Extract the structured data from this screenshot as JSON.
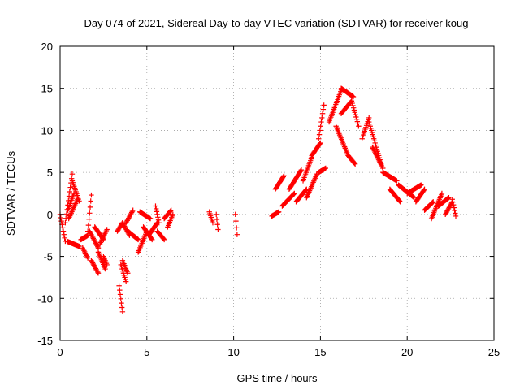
{
  "chart_data": {
    "type": "scatter",
    "title": "Day 074 of 2021, Sidereal Day-to-day VTEC variation (SDTVAR) for receiver koug",
    "xlabel": "GPS time / hours",
    "ylabel": "SDTVAR / TECUs",
    "xlim": [
      0,
      25
    ],
    "ylim": [
      -15,
      20
    ],
    "xticks": [
      0,
      5,
      10,
      15,
      20,
      25
    ],
    "yticks": [
      -15,
      -10,
      -5,
      0,
      5,
      10,
      15,
      20
    ],
    "grid": true,
    "marker": "+",
    "marker_color": "#ff0000",
    "segments": [
      {
        "t0": 0.0,
        "t1": 0.3,
        "v0": 0.0,
        "v1": -3.2
      },
      {
        "t0": 0.3,
        "t1": 0.7,
        "v0": -1.0,
        "v1": 4.8
      },
      {
        "t0": 0.45,
        "t1": 0.8,
        "v0": 0.5,
        "v1": 2.5
      },
      {
        "t0": 0.4,
        "t1": 1.1,
        "v0": -3.2,
        "v1": -3.8
      },
      {
        "t0": 0.7,
        "t1": 1.1,
        "v0": 4.0,
        "v1": 1.6
      },
      {
        "t0": 0.5,
        "t1": 1.0,
        "v0": -0.5,
        "v1": 1.8
      },
      {
        "t0": 1.2,
        "t1": 1.6,
        "v0": -3.0,
        "v1": -2.5
      },
      {
        "t0": 1.3,
        "t1": 1.6,
        "v0": -4.0,
        "v1": -5.2
      },
      {
        "t0": 1.6,
        "t1": 1.8,
        "v0": -2.0,
        "v1": 2.3
      },
      {
        "t0": 1.7,
        "t1": 2.2,
        "v0": -2.0,
        "v1": -4.0
      },
      {
        "t0": 1.8,
        "t1": 2.2,
        "v0": -5.5,
        "v1": -7.0
      },
      {
        "t0": 2.0,
        "t1": 2.5,
        "v0": -1.5,
        "v1": -3.0
      },
      {
        "t0": 2.2,
        "t1": 2.6,
        "v0": -4.5,
        "v1": -6.5
      },
      {
        "t0": 2.3,
        "t1": 2.7,
        "v0": -3.5,
        "v1": -1.8
      },
      {
        "t0": 2.5,
        "t1": 2.7,
        "v0": -5.0,
        "v1": -6.0
      },
      {
        "t0": 3.3,
        "t1": 3.6,
        "v0": -2.0,
        "v1": -1.0
      },
      {
        "t0": 3.4,
        "t1": 3.6,
        "v0": -8.5,
        "v1": -11.6
      },
      {
        "t0": 3.5,
        "t1": 3.8,
        "v0": -6.0,
        "v1": -8.0
      },
      {
        "t0": 3.6,
        "t1": 3.9,
        "v0": -5.5,
        "v1": -7.0
      },
      {
        "t0": 3.6,
        "t1": 4.0,
        "v0": -1.0,
        "v1": -2.5
      },
      {
        "t0": 3.8,
        "t1": 4.2,
        "v0": -1.0,
        "v1": 0.5
      },
      {
        "t0": 3.9,
        "t1": 4.5,
        "v0": -2.0,
        "v1": -3.0
      },
      {
        "t0": 4.5,
        "t1": 5.0,
        "v0": -4.5,
        "v1": -2.0
      },
      {
        "t0": 4.6,
        "t1": 5.2,
        "v0": 0.3,
        "v1": -0.5
      },
      {
        "t0": 4.8,
        "t1": 5.3,
        "v0": -1.5,
        "v1": -3.0
      },
      {
        "t0": 5.1,
        "t1": 5.6,
        "v0": -2.5,
        "v1": -1.0
      },
      {
        "t0": 5.5,
        "t1": 5.7,
        "v0": 1.0,
        "v1": -1.0
      },
      {
        "t0": 5.6,
        "t1": 6.0,
        "v0": -2.0,
        "v1": -3.0
      },
      {
        "t0": 6.0,
        "t1": 6.4,
        "v0": -0.5,
        "v1": 0.5
      },
      {
        "t0": 6.2,
        "t1": 6.5,
        "v0": -1.5,
        "v1": 0.0
      },
      {
        "t0": 8.6,
        "t1": 8.8,
        "v0": 0.3,
        "v1": -1.0
      },
      {
        "t0": 9.0,
        "t1": 9.1,
        "v0": 0.0,
        "v1": -1.8
      },
      {
        "t0": 10.1,
        "t1": 10.2,
        "v0": 0.0,
        "v1": -2.4
      },
      {
        "t0": 12.2,
        "t1": 12.6,
        "v0": -0.2,
        "v1": 0.3
      },
      {
        "t0": 12.4,
        "t1": 12.9,
        "v0": 3.0,
        "v1": 4.6
      },
      {
        "t0": 12.8,
        "t1": 13.5,
        "v0": 1.0,
        "v1": 2.5
      },
      {
        "t0": 13.2,
        "t1": 13.9,
        "v0": 3.0,
        "v1": 5.3
      },
      {
        "t0": 13.6,
        "t1": 14.2,
        "v0": 1.5,
        "v1": 3.0
      },
      {
        "t0": 14.0,
        "t1": 14.5,
        "v0": 4.0,
        "v1": 6.8
      },
      {
        "t0": 14.2,
        "t1": 14.8,
        "v0": 2.0,
        "v1": 4.8
      },
      {
        "t0": 14.5,
        "t1": 15.0,
        "v0": 7.0,
        "v1": 8.5
      },
      {
        "t0": 14.9,
        "t1": 15.2,
        "v0": 9.0,
        "v1": 13.0
      },
      {
        "t0": 14.9,
        "t1": 15.3,
        "v0": 5.0,
        "v1": 5.5
      },
      {
        "t0": 15.5,
        "t1": 16.2,
        "v0": 11.0,
        "v1": 14.8
      },
      {
        "t0": 16.2,
        "t1": 16.9,
        "v0": 15.0,
        "v1": 14.0
      },
      {
        "t0": 15.9,
        "t1": 16.6,
        "v0": 10.5,
        "v1": 7.0
      },
      {
        "t0": 16.6,
        "t1": 17.0,
        "v0": 7.0,
        "v1": 6.0
      },
      {
        "t0": 16.2,
        "t1": 16.8,
        "v0": 12.0,
        "v1": 13.5
      },
      {
        "t0": 16.8,
        "t1": 17.2,
        "v0": 13.5,
        "v1": 10.5
      },
      {
        "t0": 17.4,
        "t1": 17.8,
        "v0": 9.0,
        "v1": 11.5
      },
      {
        "t0": 17.8,
        "t1": 18.5,
        "v0": 11.0,
        "v1": 6.0
      },
      {
        "t0": 18.0,
        "t1": 18.6,
        "v0": 8.0,
        "v1": 5.5
      },
      {
        "t0": 18.6,
        "t1": 19.4,
        "v0": 5.0,
        "v1": 4.0
      },
      {
        "t0": 19.0,
        "t1": 19.6,
        "v0": 3.0,
        "v1": 1.5
      },
      {
        "t0": 19.5,
        "t1": 20.4,
        "v0": 3.5,
        "v1": 2.0
      },
      {
        "t0": 20.0,
        "t1": 20.8,
        "v0": 2.5,
        "v1": 3.5
      },
      {
        "t0": 20.5,
        "t1": 21.0,
        "v0": 1.5,
        "v1": 3.0
      },
      {
        "t0": 21.0,
        "t1": 21.5,
        "v0": 0.5,
        "v1": 1.5
      },
      {
        "t0": 21.4,
        "t1": 22.0,
        "v0": -0.5,
        "v1": 2.5
      },
      {
        "t0": 21.8,
        "t1": 22.4,
        "v0": 1.0,
        "v1": 2.0
      },
      {
        "t0": 22.2,
        "t1": 22.6,
        "v0": 0.0,
        "v1": 1.5
      },
      {
        "t0": 22.6,
        "t1": 22.8,
        "v0": 1.8,
        "v1": -0.2
      }
    ],
    "samples_per_hour": 28
  }
}
